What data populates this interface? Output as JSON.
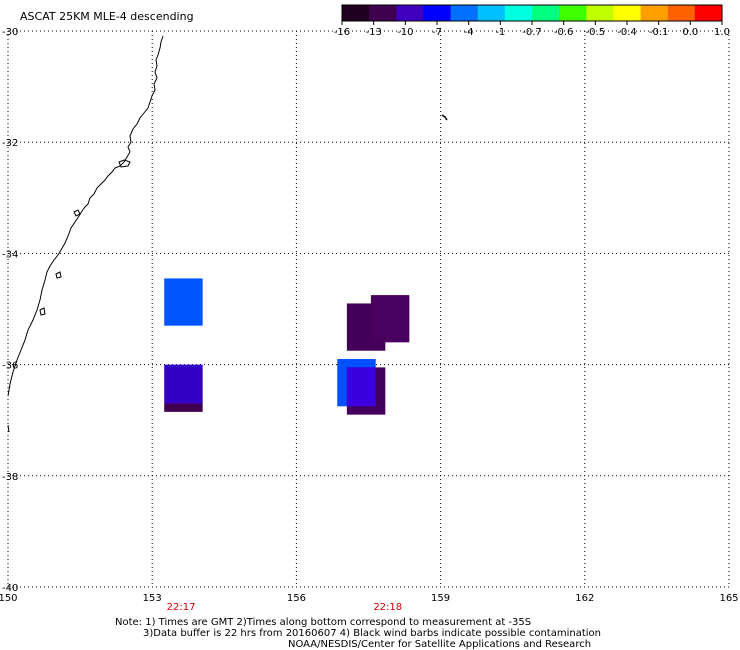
{
  "title": "ASCAT 25KM MLE-4 descending",
  "colorbar": {
    "labels": [
      "-16",
      "-13",
      "-10",
      "-7",
      "-4",
      "-1",
      "-0.7",
      "-0.6",
      "-0.5",
      "-0.4",
      "-0.1",
      "0.0",
      "1.0"
    ],
    "colors": [
      "#200020",
      "#400050",
      "#4000c0",
      "#0000ff",
      "#0070ff",
      "#00c0ff",
      "#00ffe0",
      "#00ff80",
      "#40ff00",
      "#c0ff00",
      "#ffff00",
      "#ffa000",
      "#ff6000",
      "#ff0000"
    ]
  },
  "lon_ticks": [
    "150",
    "153",
    "156",
    "159",
    "162",
    "165"
  ],
  "lat_ticks": [
    "-30",
    "-32",
    "-34",
    "-36",
    "-38",
    "-40"
  ],
  "times": [
    {
      "label": "22:17",
      "lon": 153.6
    },
    {
      "label": "22:18",
      "lon": 157.9
    }
  ],
  "cells": [
    {
      "lon_min": 153.25,
      "lon_max": 154.05,
      "lat_min": -35.3,
      "lat_max": -34.45,
      "color": "#0055ff"
    },
    {
      "lon_min": 153.25,
      "lon_max": 154.05,
      "lat_min": -36.7,
      "lat_max": -36.0,
      "color": "#3500c5"
    },
    {
      "lon_min": 153.25,
      "lon_max": 154.05,
      "lat_min": -36.85,
      "lat_max": -36.7,
      "color": "#40004f"
    },
    {
      "lon_min": 157.05,
      "lon_max": 157.85,
      "lat_min": -35.75,
      "lat_max": -34.9,
      "color": "#430058"
    },
    {
      "lon_min": 157.55,
      "lon_max": 158.35,
      "lat_min": -35.6,
      "lat_max": -34.75,
      "color": "#4a005e"
    },
    {
      "lon_min": 156.85,
      "lon_max": 157.65,
      "lat_min": -36.75,
      "lat_max": -35.9,
      "color": "#0050ff"
    },
    {
      "lon_min": 157.05,
      "lon_max": 157.85,
      "lat_min": -36.9,
      "lat_max": -36.05,
      "color": "#45005e"
    },
    {
      "lon_min": 157.05,
      "lon_max": 157.65,
      "lat_min": -36.75,
      "lat_max": -36.05,
      "color": "#3a00e0"
    }
  ],
  "notes": [
    "Note: 1) Times are GMT 2)Times along bottom correspond to measurement at -35S",
    "3)Data buffer is 22 hrs from 20160607 4) Black wind barbs indicate possible contamination",
    "NOAA/NESDIS/Center for Satellite Applications and Research"
  ]
}
